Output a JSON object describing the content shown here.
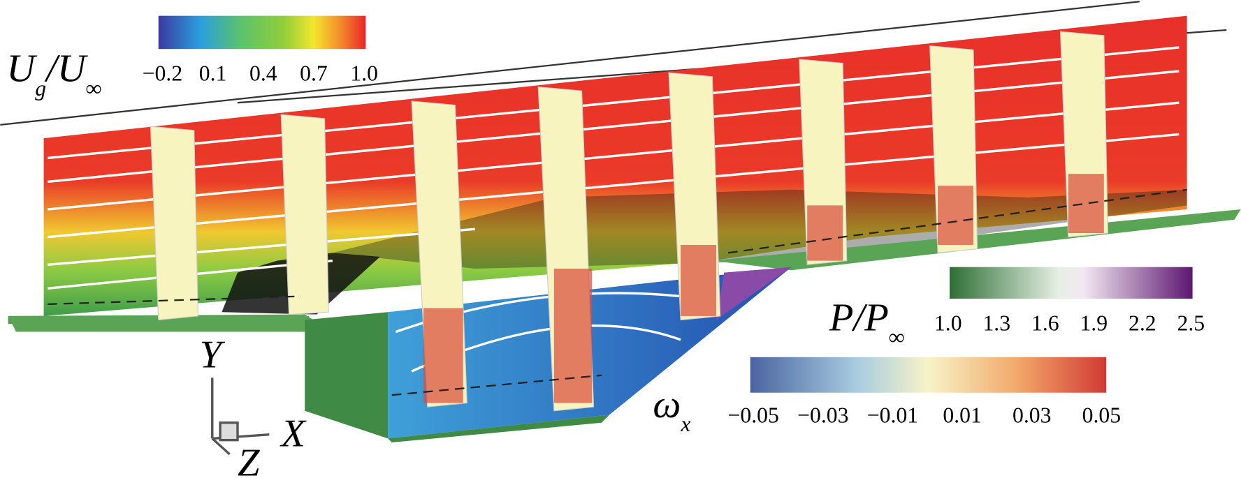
{
  "colorbars": [
    {
      "label": {
        "base1": "U",
        "sub1": "g",
        "base2": "/U",
        "sub2": "∞"
      },
      "ticks": [
        "−0.2",
        "0.1",
        "0.4",
        "0.7",
        "1.0"
      ]
    },
    {
      "label": {
        "base1": "P",
        "base2": "/P",
        "sub2": "∞"
      },
      "ticks": [
        "1.0",
        "1.3",
        "1.6",
        "1.9",
        "2.2",
        "2.5"
      ]
    },
    {
      "label": {
        "base1": "ω",
        "sub1": "x"
      },
      "ticks": [
        "−0.05",
        "−0.03",
        "−0.01",
        "0.01",
        "0.03",
        "0.05"
      ]
    }
  ],
  "axes": {
    "y": "Y",
    "x": "X",
    "z": "Z"
  }
}
